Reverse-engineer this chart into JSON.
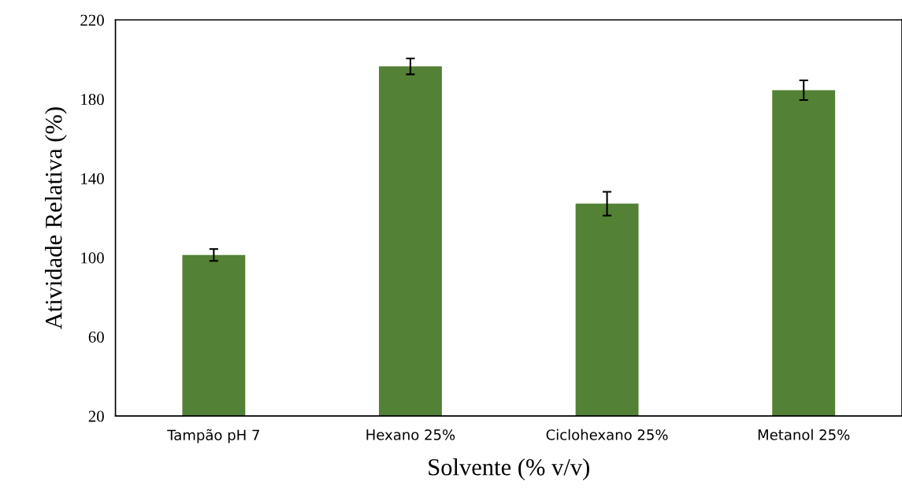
{
  "chart_data": {
    "type": "bar",
    "xlabel": "Solvente (% v/v)",
    "ylabel": "Atividade Relativa (%)",
    "categories": [
      "Tampão pH 7",
      "Hexano 25%",
      "Ciclohexano 25%",
      "Metanol 25%"
    ],
    "values": [
      101.3,
      196.5,
      127.2,
      184.5
    ],
    "errors": [
      3,
      4,
      6,
      5
    ],
    "color": "#538135",
    "ylim": [
      20,
      220
    ],
    "yticks": [
      20,
      60,
      100,
      140,
      180,
      220
    ],
    "grid": false,
    "legend": false
  }
}
